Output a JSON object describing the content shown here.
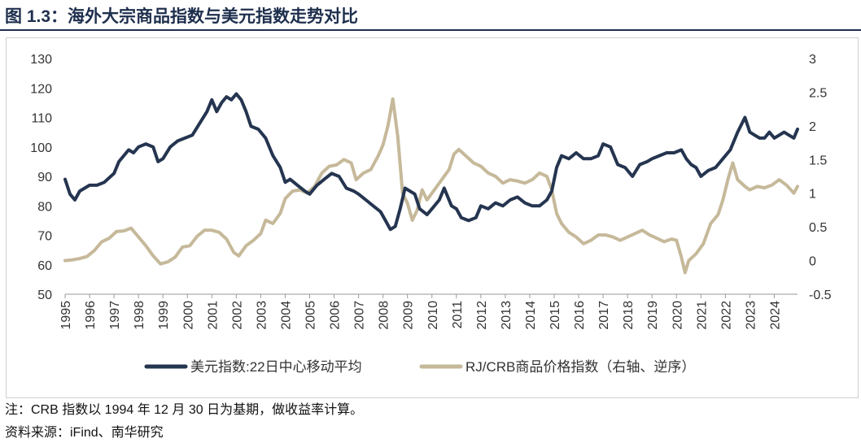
{
  "title": "图 1.3：海外大宗商品指数与美元指数走势对比",
  "notes": {
    "note": "注：CRB 指数以 1994 年 12 月 30 日为基期，做收益率计算。",
    "source": "资料来源：iFind、南华研究"
  },
  "colors": {
    "usd": "#253550",
    "crb": "#c6b99a",
    "title": "#1e2f4d"
  },
  "chart_data": {
    "type": "line",
    "title": "",
    "xlabel": "",
    "ylabel": "",
    "x_ticks": [
      "1995",
      "1996",
      "1997",
      "1998",
      "1999",
      "2000",
      "2001",
      "2002",
      "2003",
      "2004",
      "2005",
      "2006",
      "2007",
      "2008",
      "2009",
      "2010",
      "2011",
      "2012",
      "2013",
      "2014",
      "2015",
      "2016",
      "2017",
      "2018",
      "2019",
      "2020",
      "2021",
      "2022",
      "2023",
      "2024"
    ],
    "xlim": [
      1995.0,
      2024.95
    ],
    "y_left": {
      "ticks": [
        "130",
        "120",
        "110",
        "100",
        "90",
        "80",
        "70",
        "60",
        "50"
      ],
      "lim": [
        50,
        130
      ]
    },
    "y_right": {
      "ticks": [
        "3",
        "2.5",
        "2",
        "1.5",
        "1",
        "0.5",
        "0",
        "-0.5"
      ],
      "lim": [
        -0.5,
        3
      ],
      "inverted_note": "逆序"
    },
    "legend_position": "bottom",
    "grid": false,
    "series": [
      {
        "name": "美元指数:22日中心移动平均",
        "axis": "left",
        "points": [
          [
            1995.0,
            89
          ],
          [
            1995.2,
            84
          ],
          [
            1995.4,
            82
          ],
          [
            1995.6,
            85
          ],
          [
            1995.8,
            86
          ],
          [
            1996.0,
            87
          ],
          [
            1996.3,
            87
          ],
          [
            1996.6,
            88
          ],
          [
            1997.0,
            91
          ],
          [
            1997.2,
            95
          ],
          [
            1997.4,
            97
          ],
          [
            1997.6,
            99
          ],
          [
            1997.8,
            98
          ],
          [
            1998.0,
            100
          ],
          [
            1998.3,
            101
          ],
          [
            1998.6,
            100
          ],
          [
            1998.8,
            95
          ],
          [
            1999.0,
            96
          ],
          [
            1999.3,
            100
          ],
          [
            1999.6,
            102
          ],
          [
            1999.9,
            103
          ],
          [
            2000.2,
            104
          ],
          [
            2000.5,
            108
          ],
          [
            2000.8,
            112
          ],
          [
            2001.0,
            116
          ],
          [
            2001.2,
            112
          ],
          [
            2001.4,
            115
          ],
          [
            2001.6,
            117
          ],
          [
            2001.8,
            116
          ],
          [
            2002.0,
            118
          ],
          [
            2002.2,
            116
          ],
          [
            2002.4,
            112
          ],
          [
            2002.6,
            107
          ],
          [
            2002.9,
            106
          ],
          [
            2003.2,
            103
          ],
          [
            2003.5,
            97
          ],
          [
            2003.8,
            93
          ],
          [
            2004.0,
            88
          ],
          [
            2004.2,
            89
          ],
          [
            2004.5,
            87
          ],
          [
            2004.8,
            85
          ],
          [
            2005.0,
            84
          ],
          [
            2005.3,
            87
          ],
          [
            2005.6,
            89
          ],
          [
            2005.9,
            91
          ],
          [
            2006.2,
            90
          ],
          [
            2006.5,
            86
          ],
          [
            2006.8,
            85
          ],
          [
            2007.0,
            84
          ],
          [
            2007.3,
            82
          ],
          [
            2007.6,
            80
          ],
          [
            2007.9,
            78
          ],
          [
            2008.1,
            75
          ],
          [
            2008.3,
            72
          ],
          [
            2008.5,
            73
          ],
          [
            2008.7,
            79
          ],
          [
            2008.9,
            86
          ],
          [
            2009.1,
            85
          ],
          [
            2009.3,
            84
          ],
          [
            2009.5,
            79
          ],
          [
            2009.8,
            77
          ],
          [
            2010.0,
            79
          ],
          [
            2010.3,
            82
          ],
          [
            2010.5,
            86
          ],
          [
            2010.8,
            80
          ],
          [
            2011.0,
            79
          ],
          [
            2011.2,
            76
          ],
          [
            2011.5,
            75
          ],
          [
            2011.8,
            76
          ],
          [
            2012.0,
            80
          ],
          [
            2012.3,
            79
          ],
          [
            2012.6,
            81
          ],
          [
            2012.9,
            80
          ],
          [
            2013.2,
            82
          ],
          [
            2013.5,
            83
          ],
          [
            2013.8,
            81
          ],
          [
            2014.1,
            80
          ],
          [
            2014.4,
            80
          ],
          [
            2014.7,
            82
          ],
          [
            2014.9,
            85
          ],
          [
            2015.1,
            93
          ],
          [
            2015.3,
            97
          ],
          [
            2015.6,
            96
          ],
          [
            2015.9,
            98
          ],
          [
            2016.2,
            96
          ],
          [
            2016.5,
            96
          ],
          [
            2016.8,
            97
          ],
          [
            2017.0,
            101
          ],
          [
            2017.3,
            100
          ],
          [
            2017.6,
            94
          ],
          [
            2017.9,
            93
          ],
          [
            2018.2,
            90
          ],
          [
            2018.5,
            94
          ],
          [
            2018.8,
            95
          ],
          [
            2019.0,
            96
          ],
          [
            2019.3,
            97
          ],
          [
            2019.6,
            98
          ],
          [
            2019.9,
            98
          ],
          [
            2020.2,
            99
          ],
          [
            2020.4,
            96
          ],
          [
            2020.6,
            94
          ],
          [
            2020.8,
            93
          ],
          [
            2021.0,
            90
          ],
          [
            2021.3,
            92
          ],
          [
            2021.6,
            93
          ],
          [
            2021.9,
            96
          ],
          [
            2022.2,
            99
          ],
          [
            2022.5,
            105
          ],
          [
            2022.8,
            110
          ],
          [
            2023.0,
            105
          ],
          [
            2023.2,
            104
          ],
          [
            2023.4,
            103
          ],
          [
            2023.6,
            103
          ],
          [
            2023.8,
            105
          ],
          [
            2024.0,
            103
          ],
          [
            2024.2,
            104
          ],
          [
            2024.4,
            105
          ],
          [
            2024.6,
            104
          ],
          [
            2024.8,
            103
          ],
          [
            2024.95,
            106
          ]
        ]
      },
      {
        "name": "RJ/CRB商品价格指数（右轴、逆序）",
        "axis": "right",
        "points": [
          [
            1995.0,
            0.0
          ],
          [
            1995.3,
            0.01
          ],
          [
            1995.6,
            0.03
          ],
          [
            1995.9,
            0.06
          ],
          [
            1996.2,
            0.15
          ],
          [
            1996.5,
            0.28
          ],
          [
            1996.8,
            0.33
          ],
          [
            1997.1,
            0.43
          ],
          [
            1997.4,
            0.44
          ],
          [
            1997.7,
            0.48
          ],
          [
            1998.0,
            0.35
          ],
          [
            1998.3,
            0.22
          ],
          [
            1998.6,
            0.07
          ],
          [
            1998.9,
            -0.05
          ],
          [
            1999.2,
            -0.02
          ],
          [
            1999.5,
            0.05
          ],
          [
            1999.8,
            0.2
          ],
          [
            2000.1,
            0.22
          ],
          [
            2000.4,
            0.36
          ],
          [
            2000.7,
            0.45
          ],
          [
            2001.0,
            0.45
          ],
          [
            2001.3,
            0.42
          ],
          [
            2001.6,
            0.32
          ],
          [
            2001.9,
            0.12
          ],
          [
            2002.1,
            0.07
          ],
          [
            2002.4,
            0.22
          ],
          [
            2002.7,
            0.3
          ],
          [
            2003.0,
            0.4
          ],
          [
            2003.2,
            0.6
          ],
          [
            2003.5,
            0.55
          ],
          [
            2003.8,
            0.7
          ],
          [
            2004.0,
            0.92
          ],
          [
            2004.3,
            1.03
          ],
          [
            2004.6,
            1.05
          ],
          [
            2004.9,
            1.0
          ],
          [
            2005.2,
            1.1
          ],
          [
            2005.5,
            1.3
          ],
          [
            2005.8,
            1.4
          ],
          [
            2006.1,
            1.42
          ],
          [
            2006.4,
            1.5
          ],
          [
            2006.7,
            1.45
          ],
          [
            2006.9,
            1.2
          ],
          [
            2007.2,
            1.3
          ],
          [
            2007.5,
            1.35
          ],
          [
            2007.8,
            1.55
          ],
          [
            2008.0,
            1.72
          ],
          [
            2008.2,
            2.0
          ],
          [
            2008.4,
            2.4
          ],
          [
            2008.6,
            1.85
          ],
          [
            2008.8,
            1.0
          ],
          [
            2009.0,
            0.85
          ],
          [
            2009.2,
            0.6
          ],
          [
            2009.4,
            0.75
          ],
          [
            2009.6,
            1.05
          ],
          [
            2009.8,
            0.9
          ],
          [
            2010.1,
            1.05
          ],
          [
            2010.4,
            1.2
          ],
          [
            2010.7,
            1.35
          ],
          [
            2010.9,
            1.58
          ],
          [
            2011.1,
            1.65
          ],
          [
            2011.4,
            1.55
          ],
          [
            2011.7,
            1.45
          ],
          [
            2012.0,
            1.4
          ],
          [
            2012.3,
            1.3
          ],
          [
            2012.6,
            1.25
          ],
          [
            2012.9,
            1.15
          ],
          [
            2013.2,
            1.2
          ],
          [
            2013.5,
            1.18
          ],
          [
            2013.8,
            1.15
          ],
          [
            2014.1,
            1.2
          ],
          [
            2014.4,
            1.3
          ],
          [
            2014.7,
            1.25
          ],
          [
            2014.9,
            1.05
          ],
          [
            2015.1,
            0.7
          ],
          [
            2015.3,
            0.55
          ],
          [
            2015.6,
            0.42
          ],
          [
            2015.9,
            0.35
          ],
          [
            2016.2,
            0.25
          ],
          [
            2016.5,
            0.3
          ],
          [
            2016.8,
            0.38
          ],
          [
            2017.1,
            0.38
          ],
          [
            2017.4,
            0.35
          ],
          [
            2017.7,
            0.3
          ],
          [
            2018.0,
            0.35
          ],
          [
            2018.3,
            0.4
          ],
          [
            2018.6,
            0.45
          ],
          [
            2018.9,
            0.38
          ],
          [
            2019.2,
            0.33
          ],
          [
            2019.5,
            0.28
          ],
          [
            2019.8,
            0.32
          ],
          [
            2020.0,
            0.3
          ],
          [
            2020.2,
            0.05
          ],
          [
            2020.35,
            -0.18
          ],
          [
            2020.5,
            0.0
          ],
          [
            2020.8,
            0.1
          ],
          [
            2021.1,
            0.25
          ],
          [
            2021.4,
            0.55
          ],
          [
            2021.7,
            0.68
          ],
          [
            2021.9,
            0.9
          ],
          [
            2022.1,
            1.2
          ],
          [
            2022.3,
            1.45
          ],
          [
            2022.5,
            1.2
          ],
          [
            2022.8,
            1.1
          ],
          [
            2023.0,
            1.05
          ],
          [
            2023.3,
            1.1
          ],
          [
            2023.6,
            1.08
          ],
          [
            2023.9,
            1.12
          ],
          [
            2024.2,
            1.2
          ],
          [
            2024.5,
            1.12
          ],
          [
            2024.8,
            1.0
          ],
          [
            2024.95,
            1.1
          ]
        ]
      }
    ]
  }
}
